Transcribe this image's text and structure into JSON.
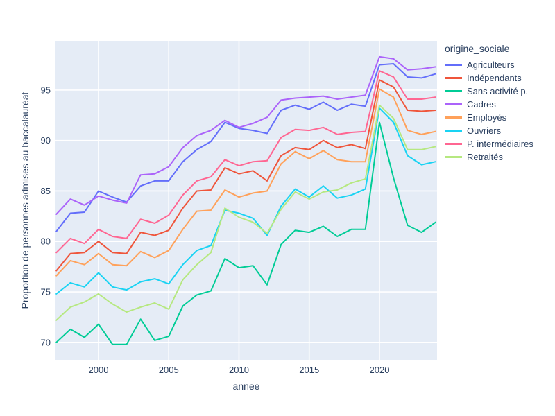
{
  "figure": {
    "background": "#ffffff",
    "plot_bgcolor": "#E5ECF6",
    "grid_color": "#ffffff",
    "text_color": "#2a3f5f"
  },
  "chart_data": {
    "type": "line",
    "title": "",
    "xlabel": "annee",
    "ylabel": "Proportion de personnes admises au baccalauréat",
    "legend_title": "origine_sociale",
    "legend_position": "right",
    "grid": true,
    "x_ticks": [
      2000,
      2005,
      2010,
      2015,
      2020
    ],
    "y_ticks": [
      70,
      75,
      80,
      85,
      90,
      95
    ],
    "xlim": [
      1996.94,
      2024.1
    ],
    "ylim": [
      68.27,
      99.87
    ],
    "x": [
      1997,
      1998,
      1999,
      2000,
      2001,
      2002,
      2003,
      2004,
      2005,
      2006,
      2007,
      2008,
      2009,
      2010,
      2011,
      2012,
      2013,
      2014,
      2015,
      2016,
      2017,
      2018,
      2019,
      2020,
      2021,
      2022,
      2023,
      2024
    ],
    "series": [
      {
        "name": "Agriculteurs",
        "color": "#636EFA",
        "values": [
          81.0,
          82.8,
          82.9,
          85.0,
          84.4,
          83.9,
          85.5,
          86.0,
          86.0,
          87.9,
          89.1,
          89.9,
          91.8,
          91.2,
          91.0,
          90.7,
          93.0,
          93.5,
          93.1,
          93.8,
          93.0,
          93.6,
          93.4,
          97.5,
          97.6,
          96.3,
          96.2,
          96.6
        ]
      },
      {
        "name": "Indépendants",
        "color": "#EF553B",
        "values": [
          77.1,
          78.8,
          78.9,
          80.0,
          78.9,
          78.8,
          80.9,
          80.6,
          81.1,
          83.3,
          85.0,
          85.1,
          87.3,
          86.7,
          87.0,
          86.0,
          88.5,
          89.3,
          89.1,
          90.0,
          89.3,
          89.6,
          89.2,
          96.0,
          95.3,
          93.0,
          92.9,
          93.0
        ]
      },
      {
        "name": "Sans activité p.",
        "color": "#00CC96",
        "values": [
          70.0,
          71.3,
          70.5,
          71.8,
          69.8,
          69.8,
          72.3,
          70.2,
          70.6,
          73.6,
          74.7,
          75.1,
          78.3,
          77.4,
          77.6,
          75.7,
          79.7,
          81.1,
          80.9,
          81.5,
          80.5,
          81.2,
          81.2,
          91.8,
          86.3,
          81.6,
          80.9,
          81.9
        ]
      },
      {
        "name": "Cadres",
        "color": "#AB63FA",
        "values": [
          82.7,
          84.2,
          83.6,
          84.5,
          84.1,
          83.8,
          86.6,
          86.7,
          87.4,
          89.3,
          90.5,
          91.0,
          92.0,
          91.3,
          91.7,
          92.3,
          94.0,
          94.2,
          94.3,
          94.4,
          94.1,
          94.3,
          94.5,
          98.3,
          98.1,
          97.0,
          97.1,
          97.3
        ]
      },
      {
        "name": "Employés",
        "color": "#FFA15A",
        "values": [
          76.6,
          78.1,
          77.7,
          78.8,
          77.7,
          77.6,
          79.0,
          78.4,
          79.1,
          81.2,
          83.0,
          83.1,
          85.1,
          84.4,
          84.8,
          85.0,
          87.7,
          88.9,
          88.2,
          89.0,
          88.1,
          87.9,
          87.9,
          95.1,
          94.3,
          91.0,
          90.6,
          90.9
        ]
      },
      {
        "name": "Ouvriers",
        "color": "#19D3F3",
        "values": [
          74.8,
          75.9,
          75.5,
          76.9,
          75.5,
          75.2,
          76.0,
          76.3,
          75.8,
          77.7,
          79.1,
          79.6,
          83.1,
          82.8,
          82.3,
          80.6,
          83.5,
          85.2,
          84.4,
          85.5,
          84.3,
          84.6,
          85.2,
          93.2,
          91.8,
          88.5,
          87.6,
          87.9
        ]
      },
      {
        "name": "P. intermédiaires",
        "color": "#FF6692",
        "values": [
          78.9,
          80.3,
          79.8,
          81.2,
          80.5,
          80.3,
          82.2,
          81.8,
          82.6,
          84.6,
          86.0,
          86.4,
          88.1,
          87.5,
          87.9,
          88.0,
          90.3,
          91.1,
          91.0,
          91.3,
          90.6,
          90.8,
          90.9,
          96.9,
          96.3,
          94.1,
          94.1,
          94.3
        ]
      },
      {
        "name": "Retraités",
        "color": "#B6E880",
        "values": [
          72.2,
          73.5,
          74.0,
          74.8,
          73.8,
          73.0,
          73.5,
          73.9,
          73.3,
          76.2,
          77.7,
          78.9,
          83.3,
          82.4,
          81.9,
          80.8,
          83.2,
          84.9,
          84.2,
          84.9,
          85.1,
          85.8,
          86.2,
          93.5,
          92.2,
          89.1,
          89.1,
          89.4
        ]
      }
    ]
  }
}
